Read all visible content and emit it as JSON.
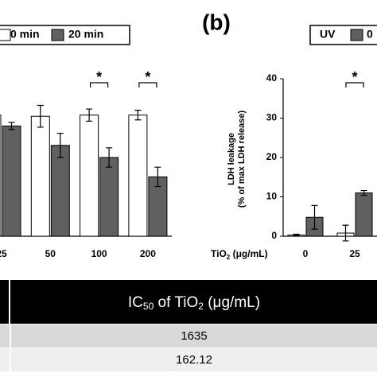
{
  "chart_data": [
    {
      "type": "bar",
      "categories": [
        "25",
        "50",
        "100",
        "200"
      ],
      "series": [
        {
          "name": "0 min",
          "color": "#ffffff",
          "values": [
            100,
            99,
            100,
            100
          ],
          "errors": [
            4,
            9,
            5,
            4
          ]
        },
        {
          "name": "20 min",
          "color": "#606060",
          "values": [
            91,
            75,
            65,
            49
          ],
          "errors": [
            3,
            10,
            8,
            8
          ]
        }
      ],
      "ylim": [
        0,
        130
      ],
      "annotations": [
        {
          "text": "*",
          "at": 2
        },
        {
          "text": "*",
          "at": 3
        }
      ]
    },
    {
      "type": "bar",
      "panel_label": "(b)",
      "ylabel": [
        "LDH leakage",
        "(% of max LDH release)"
      ],
      "xlabel": [
        "TiO",
        "2",
        " (μg/mL)"
      ],
      "categories": [
        "0",
        "25"
      ],
      "series": [
        {
          "name": "UV",
          "color": "#ffffff",
          "values": [
            0.3,
            0.8
          ],
          "errors": [
            0.2,
            2
          ]
        },
        {
          "name": "0",
          "color": "#606060",
          "values": [
            4.8,
            11
          ],
          "errors": [
            3,
            0.6
          ]
        }
      ],
      "ylim": [
        0,
        40
      ],
      "yticks": [
        0,
        10,
        20,
        30,
        40
      ],
      "annotations": [
        {
          "text": "*",
          "at": 1
        }
      ]
    }
  ],
  "table": {
    "header": [
      "IC",
      "50",
      " of TiO",
      "2",
      " (μg/mL)"
    ],
    "rows": [
      "1635",
      "162.12"
    ]
  }
}
